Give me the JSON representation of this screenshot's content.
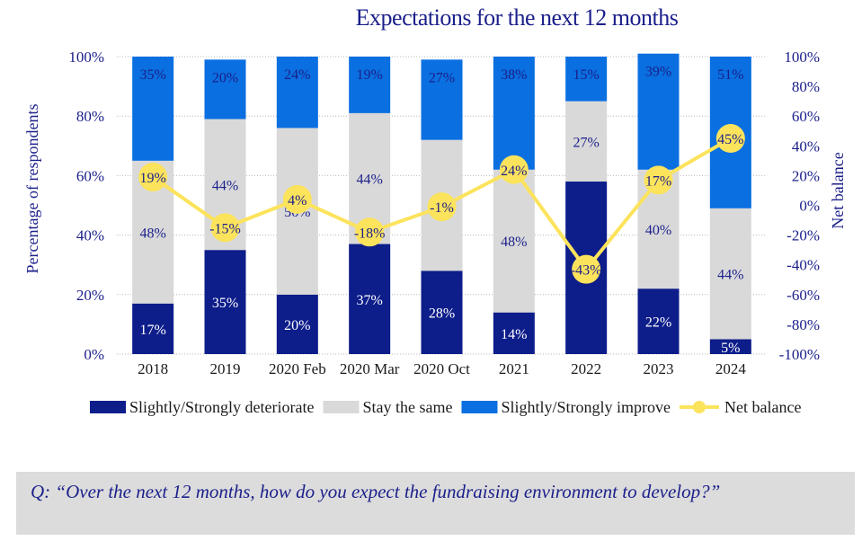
{
  "colors": {
    "deteriorate": "#0d1d8a",
    "same": "#d9d9d9",
    "improve": "#0a6fe0",
    "net": "#fce35c",
    "text": "#1b1f8a",
    "label_dark": "#1b1f8a",
    "label_light": "#ffffff"
  },
  "chart_data": {
    "type": "bar",
    "title": "Expectations for the next 12 months",
    "ylabel": "Percentage of respondents",
    "y2label": "Net balance",
    "ylim": [
      0,
      100
    ],
    "y2lim": [
      -100,
      100
    ],
    "y_ticks": [
      "0%",
      "20%",
      "40%",
      "60%",
      "80%",
      "100%"
    ],
    "y2_ticks": [
      "-100%",
      "-80%",
      "-60%",
      "-40%",
      "-20%",
      "0%",
      "20%",
      "40%",
      "60%",
      "80%",
      "100%"
    ],
    "categories": [
      "2018",
      "2019",
      "2020 Feb",
      "2020 Mar",
      "2020 Oct",
      "2021",
      "2022",
      "2023",
      "2024"
    ],
    "stacked": true,
    "series": [
      {
        "name": "Slightly/Strongly deteriorate",
        "key": "deteriorate",
        "values": [
          17,
          35,
          20,
          37,
          28,
          14,
          58,
          22,
          5
        ]
      },
      {
        "name": "Stay the same",
        "key": "same",
        "values": [
          48,
          44,
          56,
          44,
          44,
          48,
          27,
          40,
          44
        ]
      },
      {
        "name": "Slightly/Strongly improve",
        "key": "improve",
        "values": [
          35,
          20,
          24,
          19,
          27,
          38,
          15,
          39,
          51
        ]
      }
    ],
    "line_series": {
      "name": "Net balance",
      "axis": "right",
      "values": [
        19,
        -15,
        4,
        -18,
        -1,
        24,
        -43,
        17,
        45
      ]
    },
    "legend_position": "bottom"
  },
  "question": "Q: “Over the next 12 months, how do you expect the fundraising environment to develop?”"
}
